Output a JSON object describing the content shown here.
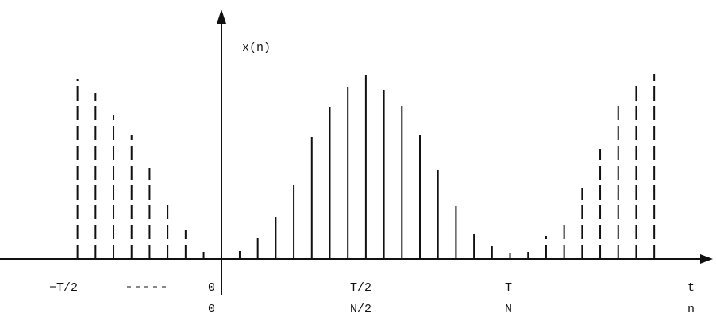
{
  "signal": {
    "y_label": "x(n)",
    "t_labels": [
      "−T/2",
      "0",
      "T/2",
      "T",
      "t"
    ],
    "n_labels": [
      "0",
      "N/2",
      "N",
      "n"
    ],
    "xlim": [
      -12.3,
      26.9
    ],
    "ylim": [
      0,
      300
    ],
    "groups": [
      {
        "dashed": true,
        "n": [
          -8,
          -7,
          -6,
          -5,
          -4,
          -3,
          -2,
          -1
        ],
        "values": [
          227,
          209,
          182,
          157,
          115,
          75,
          37,
          9
        ]
      },
      {
        "dashed": false,
        "n": [
          1,
          2,
          3,
          4,
          5,
          6,
          7,
          8,
          9,
          10,
          11,
          12,
          13,
          14,
          15,
          16
        ],
        "values": [
          10,
          27,
          53,
          93,
          154,
          192,
          217,
          232,
          214,
          193,
          157,
          112,
          67,
          32,
          17,
          7
        ]
      },
      {
        "dashed": true,
        "n": [
          17,
          18,
          19,
          20,
          21,
          22,
          23,
          24
        ],
        "values": [
          9,
          29,
          49,
          90,
          139,
          197,
          222,
          234
        ]
      }
    ]
  }
}
